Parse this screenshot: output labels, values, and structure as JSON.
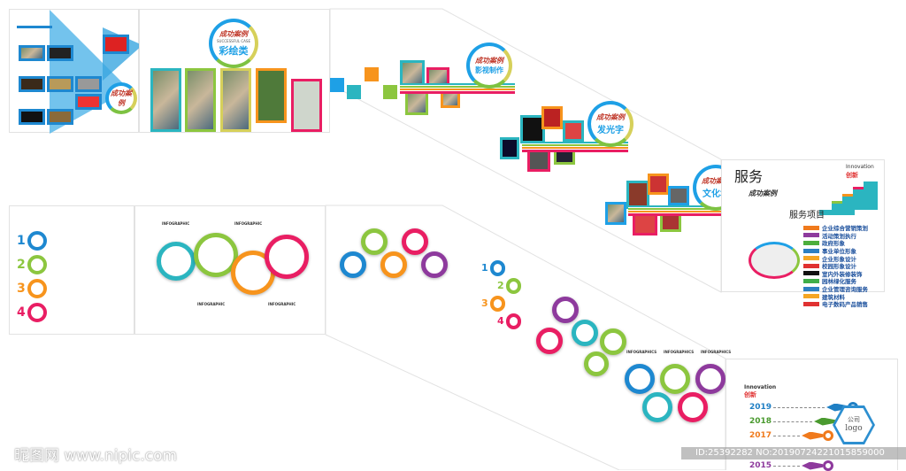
{
  "badges": {
    "brand": "成功案例",
    "brand_en": "SUCCESSFUL CASE",
    "painting": "彩绘类",
    "film": "影视制作",
    "luminous": "发光字",
    "culture": "文化墙"
  },
  "service_panel": {
    "title": "服务",
    "subtitle": "成功案例",
    "innovation_en": "Innovation",
    "innovation_cn": "创新",
    "items_title": "服务项目",
    "items": [
      {
        "label": "企业综合营销策划",
        "color": "#f07a1c"
      },
      {
        "label": "活动策划执行",
        "color": "#8e3a9d"
      },
      {
        "label": "政府形象",
        "color": "#4cae3c"
      },
      {
        "label": "事业单位形象",
        "color": "#2d7fc1"
      },
      {
        "label": "企业形象设计",
        "color": "#f5a623"
      },
      {
        "label": "校园形象设计",
        "color": "#e03131"
      },
      {
        "label": "室内外装修装饰",
        "color": "#111111"
      },
      {
        "label": "园林绿化服务",
        "color": "#3fae49"
      },
      {
        "label": "企业管理咨询服务",
        "color": "#2d7fc1"
      },
      {
        "label": "建筑材料",
        "color": "#f5a623"
      },
      {
        "label": "电子数码产品销售",
        "color": "#e03131"
      }
    ]
  },
  "infographic": {
    "label": "INFOGRAPHIC",
    "label2": "INFOGRAPHICS",
    "numbers": [
      "1",
      "2",
      "3",
      "4"
    ]
  },
  "timeline": {
    "innovation_en": "Innovation",
    "innovation_cn": "创新",
    "logo_cn": "公司",
    "logo_en": "logo",
    "years": [
      {
        "year": "2019",
        "color": "#1f7fc4"
      },
      {
        "year": "2018",
        "color": "#4a9a2f"
      },
      {
        "year": "2017",
        "color": "#f07a1c"
      },
      {
        "year": "2015",
        "color": "#8e3a9d"
      }
    ]
  },
  "watermark": {
    "site": "昵图网 www.nipic.com",
    "id": "ID:25392282 NO:20190724221015859000"
  }
}
